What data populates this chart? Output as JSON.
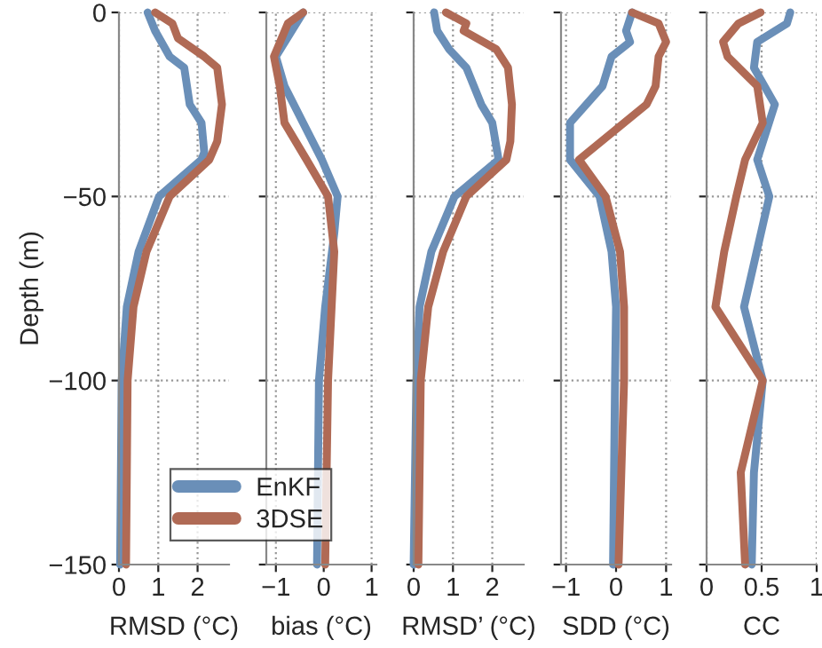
{
  "chart_data": [
    {
      "type": "line",
      "orientation": "horizontal",
      "xlabel": "RMSD (°C)",
      "ylabel": "Depth (m)",
      "xlim": [
        0,
        2.8
      ],
      "xticks": [
        0,
        1,
        2
      ],
      "ylim": [
        -150,
        0
      ],
      "yticks": [
        {
          "value": -150,
          "label": "−150"
        },
        {
          "value": -100,
          "label": "−100"
        },
        {
          "value": -50,
          "label": "−50"
        },
        0
      ],
      "grid": true,
      "legend": "bottom right",
      "series": [
        {
          "name": "EnKF",
          "color": "#6a8fb8",
          "x": [
            0,
            -5,
            -12,
            -15,
            -25,
            -30,
            -38,
            -40,
            -50,
            -65,
            -80,
            -100,
            -150
          ],
          "values": [
            0.73,
            0.92,
            1.29,
            1.66,
            1.8,
            2.1,
            2.17,
            2.1,
            1.02,
            0.5,
            0.2,
            0.07,
            0.03
          ]
        },
        {
          "name": "3DSE",
          "color": "#b06a55",
          "x": [
            0,
            -3,
            -7,
            -12,
            -15,
            -25,
            -35,
            -40,
            -50,
            -65,
            -80,
            -100,
            -150
          ],
          "values": [
            0.92,
            1.36,
            1.5,
            2.17,
            2.5,
            2.62,
            2.5,
            2.3,
            1.29,
            0.7,
            0.37,
            0.22,
            0.18
          ]
        }
      ]
    },
    {
      "type": "line",
      "orientation": "horizontal",
      "xlabel": "bias (°C)",
      "xlim": [
        -1.2,
        1.1
      ],
      "xticks": [
        {
          "value": -1,
          "label": "−1"
        },
        0,
        1
      ],
      "ylim": [
        -150,
        0
      ],
      "yticks": [
        {
          "value": -150,
          "label": null
        },
        {
          "value": -100,
          "label": null
        },
        {
          "value": -50,
          "label": null
        },
        {
          "value": 0,
          "label": null
        }
      ],
      "grid": true,
      "tick_labels": "x",
      "series": [
        {
          "color": "#6a8fb8",
          "x": [
            0,
            -12,
            -20,
            -30,
            -40,
            -50,
            -60,
            -80,
            -100,
            -150
          ],
          "values": [
            -0.43,
            -1.0,
            -0.82,
            -0.43,
            -0.04,
            0.29,
            0.22,
            0.03,
            -0.1,
            -0.14
          ]
        },
        {
          "color": "#b06a55",
          "x": [
            0,
            -3,
            -12,
            -20,
            -30,
            -40,
            -50,
            -65,
            -100,
            -150
          ],
          "values": [
            -0.43,
            -0.75,
            -1.04,
            -0.92,
            -0.82,
            -0.36,
            0.09,
            0.22,
            0.09,
            0.03
          ]
        }
      ]
    },
    {
      "type": "line",
      "orientation": "horizontal",
      "xlabel": "RMSD’ (°C)",
      "xlim": [
        0,
        2.8
      ],
      "xticks": [
        0,
        1,
        2
      ],
      "ylim": [
        -150,
        0
      ],
      "yticks": [
        {
          "value": -150,
          "label": null
        },
        {
          "value": -100,
          "label": null
        },
        {
          "value": -50,
          "label": null
        },
        {
          "value": 0,
          "label": null
        }
      ],
      "grid": true,
      "tick_labels": "x",
      "series": [
        {
          "color": "#6a8fb8",
          "x": [
            0,
            -5,
            -10,
            -15,
            -25,
            -30,
            -40,
            -50,
            -65,
            -80,
            -100,
            -150
          ],
          "values": [
            0.52,
            0.6,
            0.9,
            1.34,
            1.72,
            2.0,
            2.16,
            1.04,
            0.45,
            0.15,
            0.07,
            0
          ]
        },
        {
          "color": "#b06a55",
          "x": [
            0,
            -3,
            -5,
            -10,
            -15,
            -25,
            -35,
            -40,
            -50,
            -65,
            -80,
            -100,
            -150
          ],
          "values": [
            0.82,
            1.34,
            1.27,
            2.1,
            2.4,
            2.5,
            2.46,
            2.36,
            1.34,
            0.75,
            0.37,
            0.18,
            0.12
          ]
        }
      ]
    },
    {
      "type": "line",
      "orientation": "horizontal",
      "xlabel": "SDD (°C)",
      "xlim": [
        -1.1,
        1.1
      ],
      "xticks": [
        {
          "value": -1,
          "label": "−1"
        },
        0,
        1
      ],
      "ylim": [
        -150,
        0
      ],
      "yticks": [
        {
          "value": -150,
          "label": null
        },
        {
          "value": -100,
          "label": null
        },
        {
          "value": -50,
          "label": null
        },
        {
          "value": 0,
          "label": null
        }
      ],
      "grid": true,
      "tick_labels": "x",
      "series": [
        {
          "color": "#6a8fb8",
          "x": [
            0,
            -5,
            -8,
            -12,
            -20,
            -30,
            -40,
            -50,
            -65,
            -80,
            -100,
            -150
          ],
          "values": [
            0.32,
            0.2,
            0.28,
            -0.09,
            -0.27,
            -0.92,
            -0.92,
            -0.33,
            -0.09,
            0,
            -0.02,
            -0.06
          ]
        },
        {
          "color": "#b06a55",
          "x": [
            0,
            -3,
            -8,
            -12,
            -20,
            -25,
            -40,
            -50,
            -65,
            -80,
            -100,
            -150
          ],
          "values": [
            0.32,
            0.85,
            1.0,
            0.85,
            0.79,
            0.61,
            -0.74,
            -0.21,
            0.08,
            0.16,
            0.16,
            0.05
          ]
        }
      ]
    },
    {
      "type": "line",
      "orientation": "horizontal",
      "xlabel": "CC",
      "xlim": [
        0,
        1
      ],
      "xticks": [
        0,
        0.5,
        1
      ],
      "ylim": [
        -150,
        0
      ],
      "yticks": [
        {
          "value": -150,
          "label": null
        },
        {
          "value": -100,
          "label": null
        },
        {
          "value": -50,
          "label": null
        },
        {
          "value": 0,
          "label": null
        }
      ],
      "grid": true,
      "tick_labels": "x",
      "series": [
        {
          "color": "#6a8fb8",
          "x": [
            0,
            -3,
            -8,
            -15,
            -25,
            -40,
            -50,
            -80,
            -100,
            -125,
            -150
          ],
          "values": [
            0.76,
            0.73,
            0.46,
            0.43,
            0.62,
            0.46,
            0.57,
            0.34,
            0.51,
            0.43,
            0.41
          ]
        },
        {
          "color": "#b06a55",
          "x": [
            0,
            -3,
            -8,
            -12,
            -20,
            -30,
            -40,
            -50,
            -65,
            -80,
            -100,
            -125,
            -150
          ],
          "values": [
            0.49,
            0.29,
            0.15,
            0.19,
            0.46,
            0.51,
            0.35,
            0.27,
            0.16,
            0.08,
            0.51,
            0.31,
            0.35
          ]
        }
      ]
    }
  ]
}
